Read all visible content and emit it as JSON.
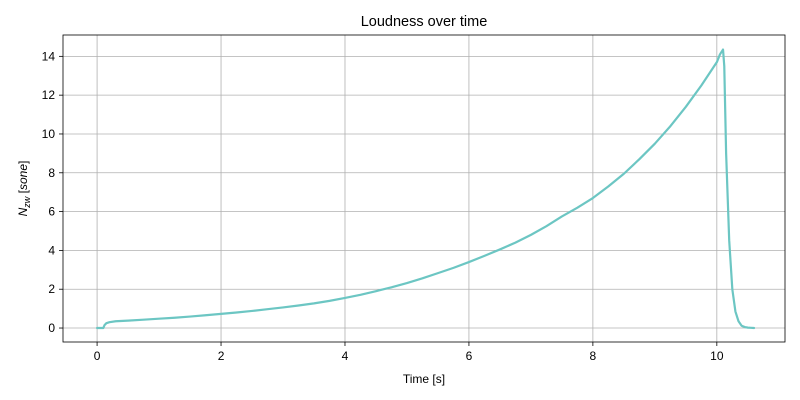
{
  "chart_data": {
    "type": "line",
    "title": "Loudness over time",
    "xlabel": "Time [s]",
    "ylabel": "N_zw [sone]",
    "ylabel_parts": {
      "symbol": "N",
      "subscript": "zw",
      "unit": "sone"
    },
    "xlim": [
      -0.55,
      11.1
    ],
    "ylim": [
      -0.72,
      15.1
    ],
    "xticks": [
      0,
      2,
      4,
      6,
      8,
      10
    ],
    "yticks": [
      0,
      2,
      4,
      6,
      8,
      10,
      12,
      14
    ],
    "grid": true,
    "line_color": "#6cc6c3",
    "grid_color": "#b0b0b0",
    "series": [
      {
        "x": [
          0,
          0.1,
          0.12,
          0.15,
          0.2,
          0.3,
          0.5,
          0.75,
          1,
          1.25,
          1.5,
          1.75,
          2,
          2.25,
          2.5,
          2.75,
          3,
          3.25,
          3.5,
          3.75,
          4,
          4.25,
          4.5,
          4.75,
          5,
          5.25,
          5.5,
          5.75,
          6,
          6.25,
          6.5,
          6.75,
          7,
          7.25,
          7.5,
          7.75,
          8,
          8.25,
          8.5,
          8.75,
          9,
          9.25,
          9.5,
          9.75,
          10,
          10.05,
          10.1,
          10.12,
          10.15,
          10.2,
          10.25,
          10.3,
          10.35,
          10.4,
          10.45,
          10.5,
          10.55,
          10.6
        ],
        "y": [
          0,
          0,
          0.15,
          0.25,
          0.3,
          0.35,
          0.38,
          0.43,
          0.48,
          0.53,
          0.59,
          0.66,
          0.73,
          0.8,
          0.88,
          0.97,
          1.06,
          1.16,
          1.27,
          1.4,
          1.55,
          1.71,
          1.9,
          2.1,
          2.32,
          2.56,
          2.83,
          3.1,
          3.4,
          3.72,
          4.05,
          4.4,
          4.8,
          5.25,
          5.75,
          6.2,
          6.7,
          7.3,
          7.95,
          8.7,
          9.5,
          10.4,
          11.4,
          12.5,
          13.7,
          14.1,
          14.35,
          13.5,
          9.0,
          4.5,
          2.0,
          0.85,
          0.35,
          0.12,
          0.05,
          0.02,
          0.01,
          0
        ]
      }
    ]
  }
}
